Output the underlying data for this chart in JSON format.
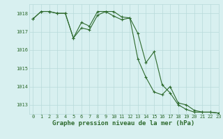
{
  "line1_x": [
    0,
    1,
    2,
    3,
    4,
    5,
    6,
    7,
    8,
    9,
    10,
    11,
    12,
    13,
    14,
    15,
    16,
    17,
    18,
    19,
    20,
    21,
    22,
    23
  ],
  "line1_y": [
    1017.7,
    1018.1,
    1018.1,
    1018.0,
    1018.0,
    1016.65,
    1017.2,
    1017.1,
    1017.9,
    1018.1,
    1017.85,
    1017.65,
    1017.75,
    1016.9,
    1015.3,
    1015.9,
    1014.1,
    1013.65,
    1013.0,
    1012.75,
    1012.6,
    1012.6,
    1012.6,
    1012.55
  ],
  "line2_x": [
    0,
    1,
    2,
    3,
    4,
    5,
    6,
    7,
    8,
    9,
    10,
    11,
    12,
    13,
    14,
    15,
    16,
    17,
    18,
    19,
    20,
    21,
    22,
    23
  ],
  "line2_y": [
    1017.7,
    1018.1,
    1018.1,
    1018.0,
    1018.0,
    1016.65,
    1017.5,
    1017.3,
    1018.1,
    1018.1,
    1018.1,
    1017.8,
    1017.75,
    1015.5,
    1014.5,
    1013.7,
    1013.55,
    1014.0,
    1013.1,
    1013.0,
    1012.7,
    1012.6,
    1012.6,
    1012.55
  ],
  "line_color": "#2d6a2d",
  "background_color": "#d8f0f0",
  "grid_color": "#b8dada",
  "xlabel": "Graphe pression niveau de la mer (hPa)",
  "ylim": [
    1012.5,
    1018.5
  ],
  "xlim": [
    -0.5,
    23
  ],
  "yticks": [
    1013,
    1014,
    1015,
    1016,
    1017,
    1018
  ],
  "xticks": [
    0,
    1,
    2,
    3,
    4,
    5,
    6,
    7,
    8,
    9,
    10,
    11,
    12,
    13,
    14,
    15,
    16,
    17,
    18,
    19,
    20,
    21,
    22,
    23
  ],
  "tick_label_size": 5.0,
  "xlabel_size": 6.5
}
